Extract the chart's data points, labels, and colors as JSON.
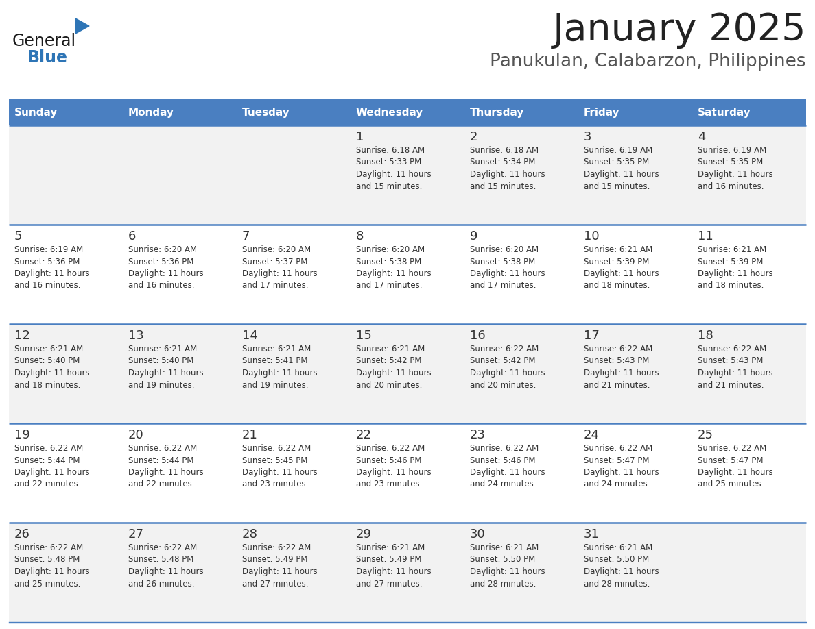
{
  "title": "January 2025",
  "subtitle": "Panukulan, Calabarzon, Philippines",
  "days_of_week": [
    "Sunday",
    "Monday",
    "Tuesday",
    "Wednesday",
    "Thursday",
    "Friday",
    "Saturday"
  ],
  "header_bg": "#4A7FC1",
  "header_text": "#FFFFFF",
  "row_bg_odd": "#F2F2F2",
  "row_bg_even": "#FFFFFF",
  "cell_text_color": "#333333",
  "day_num_color": "#333333",
  "border_color": "#4A7FC1",
  "title_color": "#222222",
  "subtitle_color": "#555555",
  "calendar_data": [
    [
      {
        "day": 0
      },
      {
        "day": 0
      },
      {
        "day": 0
      },
      {
        "day": 1,
        "sunrise": "6:18 AM",
        "sunset": "5:33 PM",
        "daylight": "11 hours and 15 minutes."
      },
      {
        "day": 2,
        "sunrise": "6:18 AM",
        "sunset": "5:34 PM",
        "daylight": "11 hours and 15 minutes."
      },
      {
        "day": 3,
        "sunrise": "6:19 AM",
        "sunset": "5:35 PM",
        "daylight": "11 hours and 15 minutes."
      },
      {
        "day": 4,
        "sunrise": "6:19 AM",
        "sunset": "5:35 PM",
        "daylight": "11 hours and 16 minutes."
      }
    ],
    [
      {
        "day": 5,
        "sunrise": "6:19 AM",
        "sunset": "5:36 PM",
        "daylight": "11 hours and 16 minutes."
      },
      {
        "day": 6,
        "sunrise": "6:20 AM",
        "sunset": "5:36 PM",
        "daylight": "11 hours and 16 minutes."
      },
      {
        "day": 7,
        "sunrise": "6:20 AM",
        "sunset": "5:37 PM",
        "daylight": "11 hours and 17 minutes."
      },
      {
        "day": 8,
        "sunrise": "6:20 AM",
        "sunset": "5:38 PM",
        "daylight": "11 hours and 17 minutes."
      },
      {
        "day": 9,
        "sunrise": "6:20 AM",
        "sunset": "5:38 PM",
        "daylight": "11 hours and 17 minutes."
      },
      {
        "day": 10,
        "sunrise": "6:21 AM",
        "sunset": "5:39 PM",
        "daylight": "11 hours and 18 minutes."
      },
      {
        "day": 11,
        "sunrise": "6:21 AM",
        "sunset": "5:39 PM",
        "daylight": "11 hours and 18 minutes."
      }
    ],
    [
      {
        "day": 12,
        "sunrise": "6:21 AM",
        "sunset": "5:40 PM",
        "daylight": "11 hours and 18 minutes."
      },
      {
        "day": 13,
        "sunrise": "6:21 AM",
        "sunset": "5:40 PM",
        "daylight": "11 hours and 19 minutes."
      },
      {
        "day": 14,
        "sunrise": "6:21 AM",
        "sunset": "5:41 PM",
        "daylight": "11 hours and 19 minutes."
      },
      {
        "day": 15,
        "sunrise": "6:21 AM",
        "sunset": "5:42 PM",
        "daylight": "11 hours and 20 minutes."
      },
      {
        "day": 16,
        "sunrise": "6:22 AM",
        "sunset": "5:42 PM",
        "daylight": "11 hours and 20 minutes."
      },
      {
        "day": 17,
        "sunrise": "6:22 AM",
        "sunset": "5:43 PM",
        "daylight": "11 hours and 21 minutes."
      },
      {
        "day": 18,
        "sunrise": "6:22 AM",
        "sunset": "5:43 PM",
        "daylight": "11 hours and 21 minutes."
      }
    ],
    [
      {
        "day": 19,
        "sunrise": "6:22 AM",
        "sunset": "5:44 PM",
        "daylight": "11 hours and 22 minutes."
      },
      {
        "day": 20,
        "sunrise": "6:22 AM",
        "sunset": "5:44 PM",
        "daylight": "11 hours and 22 minutes."
      },
      {
        "day": 21,
        "sunrise": "6:22 AM",
        "sunset": "5:45 PM",
        "daylight": "11 hours and 23 minutes."
      },
      {
        "day": 22,
        "sunrise": "6:22 AM",
        "sunset": "5:46 PM",
        "daylight": "11 hours and 23 minutes."
      },
      {
        "day": 23,
        "sunrise": "6:22 AM",
        "sunset": "5:46 PM",
        "daylight": "11 hours and 24 minutes."
      },
      {
        "day": 24,
        "sunrise": "6:22 AM",
        "sunset": "5:47 PM",
        "daylight": "11 hours and 24 minutes."
      },
      {
        "day": 25,
        "sunrise": "6:22 AM",
        "sunset": "5:47 PM",
        "daylight": "11 hours and 25 minutes."
      }
    ],
    [
      {
        "day": 26,
        "sunrise": "6:22 AM",
        "sunset": "5:48 PM",
        "daylight": "11 hours and 25 minutes."
      },
      {
        "day": 27,
        "sunrise": "6:22 AM",
        "sunset": "5:48 PM",
        "daylight": "11 hours and 26 minutes."
      },
      {
        "day": 28,
        "sunrise": "6:22 AM",
        "sunset": "5:49 PM",
        "daylight": "11 hours and 27 minutes."
      },
      {
        "day": 29,
        "sunrise": "6:21 AM",
        "sunset": "5:49 PM",
        "daylight": "11 hours and 27 minutes."
      },
      {
        "day": 30,
        "sunrise": "6:21 AM",
        "sunset": "5:50 PM",
        "daylight": "11 hours and 28 minutes."
      },
      {
        "day": 31,
        "sunrise": "6:21 AM",
        "sunset": "5:50 PM",
        "daylight": "11 hours and 28 minutes."
      },
      {
        "day": 0
      }
    ]
  ],
  "logo_color_general": "#1a1a1a",
  "logo_color_blue": "#2E75B6",
  "logo_triangle_color": "#2E75B6",
  "figsize": [
    11.88,
    9.18
  ],
  "dpi": 100
}
